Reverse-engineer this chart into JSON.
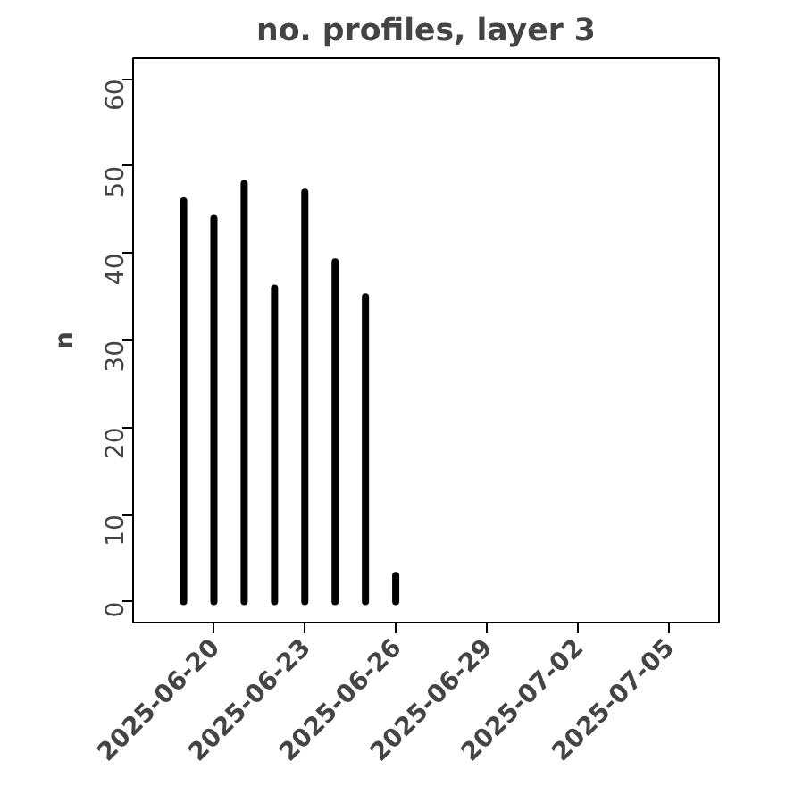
{
  "chart_data": {
    "type": "bar",
    "title": "no. profiles, layer 3",
    "ylabel": "n",
    "x": [
      "2025-06-19",
      "2025-06-20",
      "2025-06-21",
      "2025-06-22",
      "2025-06-23",
      "2025-06-24",
      "2025-06-25",
      "2025-06-26",
      "2025-06-27",
      "2025-06-28",
      "2025-06-29",
      "2025-06-30",
      "2025-07-01",
      "2025-07-02",
      "2025-07-03",
      "2025-07-04",
      "2025-07-05"
    ],
    "values": [
      46,
      44,
      48,
      36,
      47,
      39,
      35,
      3,
      0,
      0,
      0,
      0,
      0,
      0,
      0,
      0,
      0
    ],
    "color": "#000000",
    "xlim": [
      "2025-06-17T08:00",
      "2025-07-06T16:00"
    ],
    "xticks": [
      {
        "value": "2025-06-20",
        "label": "2025-06-20"
      },
      {
        "value": "2025-06-23",
        "label": "2025-06-23"
      },
      {
        "value": "2025-06-26",
        "label": "2025-06-26"
      },
      {
        "value": "2025-06-29",
        "label": "2025-06-29"
      },
      {
        "value": "2025-07-02",
        "label": "2025-07-02"
      },
      {
        "value": "2025-07-05",
        "label": "2025-07-05"
      }
    ],
    "ylim": [
      -2.4,
      62.4
    ],
    "yticks": [
      0,
      10,
      20,
      30,
      40,
      50,
      60
    ],
    "grid": false
  }
}
